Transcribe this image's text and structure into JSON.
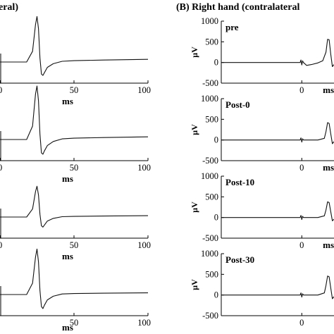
{
  "panels": {
    "left_title": "eral)",
    "right_title": "(B) Right hand (contralateral"
  },
  "chart_data": [
    {
      "type": "line",
      "panel": "A",
      "row": 0,
      "label": "",
      "xlabel": "ms",
      "ylabel": "",
      "xlim": [
        0,
        100
      ],
      "x_ticks": [
        "0",
        "50",
        "100"
      ],
      "y_ticks": [],
      "series": [
        {
          "x": [
            0,
            18,
            22,
            24,
            25,
            26,
            27,
            28,
            29,
            30,
            32,
            36,
            42,
            50,
            70,
            100
          ],
          "y": [
            0,
            0,
            160,
            560,
            680,
            500,
            60,
            -180,
            -200,
            -160,
            -80,
            -25,
            10,
            20,
            30,
            40
          ]
        }
      ]
    },
    {
      "type": "line",
      "panel": "A",
      "row": 1,
      "label": "",
      "xlabel": "ms",
      "ylabel": "",
      "xlim": [
        0,
        100
      ],
      "x_ticks": [
        "0",
        "50",
        "100"
      ],
      "y_ticks": [],
      "series": [
        {
          "x": [
            0,
            18,
            22,
            24,
            25,
            26,
            27,
            28,
            29,
            30,
            32,
            36,
            42,
            50,
            70,
            100
          ],
          "y": [
            0,
            0,
            200,
            680,
            800,
            580,
            80,
            -200,
            -220,
            -170,
            -90,
            -30,
            10,
            20,
            30,
            40
          ]
        }
      ]
    },
    {
      "type": "line",
      "panel": "A",
      "row": 2,
      "label": "",
      "xlabel": "ms",
      "ylabel": "",
      "xlim": [
        0,
        100
      ],
      "x_ticks": [
        "0",
        "50",
        "100"
      ],
      "y_ticks": [],
      "series": [
        {
          "x": [
            0,
            18,
            22,
            24,
            25,
            26,
            27,
            28,
            29,
            30,
            32,
            36,
            42,
            50,
            70,
            100
          ],
          "y": [
            0,
            0,
            120,
            380,
            460,
            330,
            40,
            -130,
            -150,
            -120,
            -60,
            -20,
            5,
            10,
            15,
            20
          ]
        }
      ]
    },
    {
      "type": "line",
      "panel": "A",
      "row": 3,
      "label": "",
      "xlabel": "ms",
      "ylabel": "",
      "xlim": [
        0,
        100
      ],
      "x_ticks": [
        "",
        "50",
        "100"
      ],
      "y_ticks": [],
      "series": [
        {
          "x": [
            0,
            18,
            22,
            24,
            25,
            26,
            27,
            28,
            29,
            30,
            32,
            36,
            42,
            50,
            70,
            100
          ],
          "y": [
            0,
            0,
            170,
            560,
            680,
            490,
            60,
            -180,
            -210,
            -160,
            -80,
            -25,
            8,
            15,
            20,
            25
          ]
        }
      ]
    },
    {
      "type": "line",
      "panel": "B",
      "row": 0,
      "label": "pre",
      "xlabel": "ms",
      "ylabel": "μV",
      "xlim": [
        -50,
        20
      ],
      "ylim": [
        -500,
        1000
      ],
      "x_ticks": [
        "0"
      ],
      "y_ticks": [
        "1000",
        "500",
        "0",
        "-500"
      ],
      "series": [
        {
          "x": [
            -50,
            -1,
            -0.5,
            0,
            0.5,
            1,
            3,
            6,
            10,
            13,
            15,
            16,
            17,
            18,
            19,
            20
          ],
          "y": [
            0,
            0,
            60,
            -60,
            40,
            0,
            -70,
            -50,
            -10,
            40,
            250,
            560,
            550,
            200,
            -100,
            -50
          ]
        }
      ]
    },
    {
      "type": "line",
      "panel": "B",
      "row": 1,
      "label": "Post-0",
      "xlabel": "ms",
      "ylabel": "μV",
      "xlim": [
        -50,
        20
      ],
      "ylim": [
        -500,
        1000
      ],
      "x_ticks": [
        "0"
      ],
      "y_ticks": [
        "1000",
        "500",
        "0",
        "-500"
      ],
      "series": [
        {
          "x": [
            -50,
            -1,
            -0.5,
            0,
            0.5,
            1,
            10,
            14,
            15,
            16,
            17,
            18,
            19,
            20
          ],
          "y": [
            0,
            0,
            50,
            -50,
            30,
            0,
            0,
            40,
            200,
            420,
            400,
            150,
            -90,
            -40
          ]
        }
      ]
    },
    {
      "type": "line",
      "panel": "B",
      "row": 2,
      "label": "Post-10",
      "xlabel": "ms",
      "ylabel": "μV",
      "xlim": [
        -50,
        20
      ],
      "ylim": [
        -500,
        1000
      ],
      "x_ticks": [
        "0"
      ],
      "y_ticks": [
        "1000",
        "500",
        "0",
        "-500"
      ],
      "series": [
        {
          "x": [
            -50,
            -1,
            -0.5,
            0,
            0.5,
            1,
            10,
            14,
            15,
            16,
            17,
            18,
            19,
            20
          ],
          "y": [
            0,
            0,
            50,
            -50,
            30,
            0,
            0,
            40,
            180,
            380,
            360,
            140,
            -80,
            -40
          ]
        }
      ]
    },
    {
      "type": "line",
      "panel": "B",
      "row": 3,
      "label": "Post-30",
      "xlabel": "",
      "ylabel": "μV",
      "xlim": [
        -50,
        20
      ],
      "ylim": [
        -500,
        1000
      ],
      "x_ticks": [
        "0"
      ],
      "y_ticks": [
        "1000",
        "500",
        "0",
        "-500"
      ],
      "series": [
        {
          "x": [
            -50,
            -1,
            -0.5,
            0,
            0.5,
            1,
            10,
            14,
            15,
            16,
            17,
            18,
            19,
            20
          ],
          "y": [
            0,
            0,
            50,
            -50,
            30,
            0,
            0,
            50,
            230,
            460,
            440,
            170,
            -90,
            -40
          ]
        }
      ]
    }
  ],
  "bottom_xlabel": "ms"
}
